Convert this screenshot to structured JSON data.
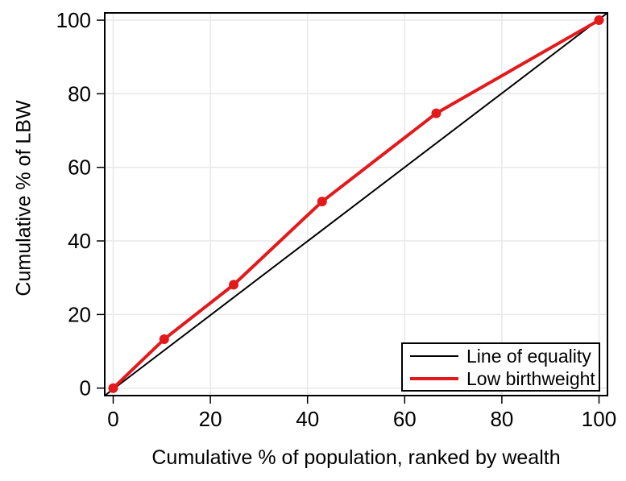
{
  "colors": {
    "series_red": "#e31a1c",
    "series_black": "#000000",
    "gridline": "#e8e8e8",
    "plot_border": "#000000",
    "background": "#ffffff",
    "text": "#000000"
  },
  "chart_data": {
    "type": "line",
    "title": "",
    "xlabel": "Cumulative % of population, ranked by wealth",
    "ylabel": "Cumulative % of LBW",
    "xlim": [
      0,
      100
    ],
    "ylim": [
      0,
      100
    ],
    "xticks": [
      0,
      20,
      40,
      60,
      80,
      100
    ],
    "yticks": [
      0,
      20,
      40,
      60,
      80,
      100
    ],
    "grid": true,
    "legend_position": "inside bottom-right",
    "series": [
      {
        "name": "Line of equality",
        "color": "#000000",
        "stroke_width": 2,
        "markers": false,
        "corner_to_corner": true,
        "x": [
          0,
          100
        ],
        "y": [
          0,
          100
        ]
      },
      {
        "name": "Low birthweight",
        "color": "#e31a1c",
        "stroke_width": 4,
        "markers": true,
        "marker_radius": 6,
        "x": [
          0,
          10.5,
          24.8,
          43,
          66.5,
          100
        ],
        "y": [
          0,
          13.3,
          28.1,
          50.7,
          74.7,
          100
        ]
      }
    ]
  }
}
